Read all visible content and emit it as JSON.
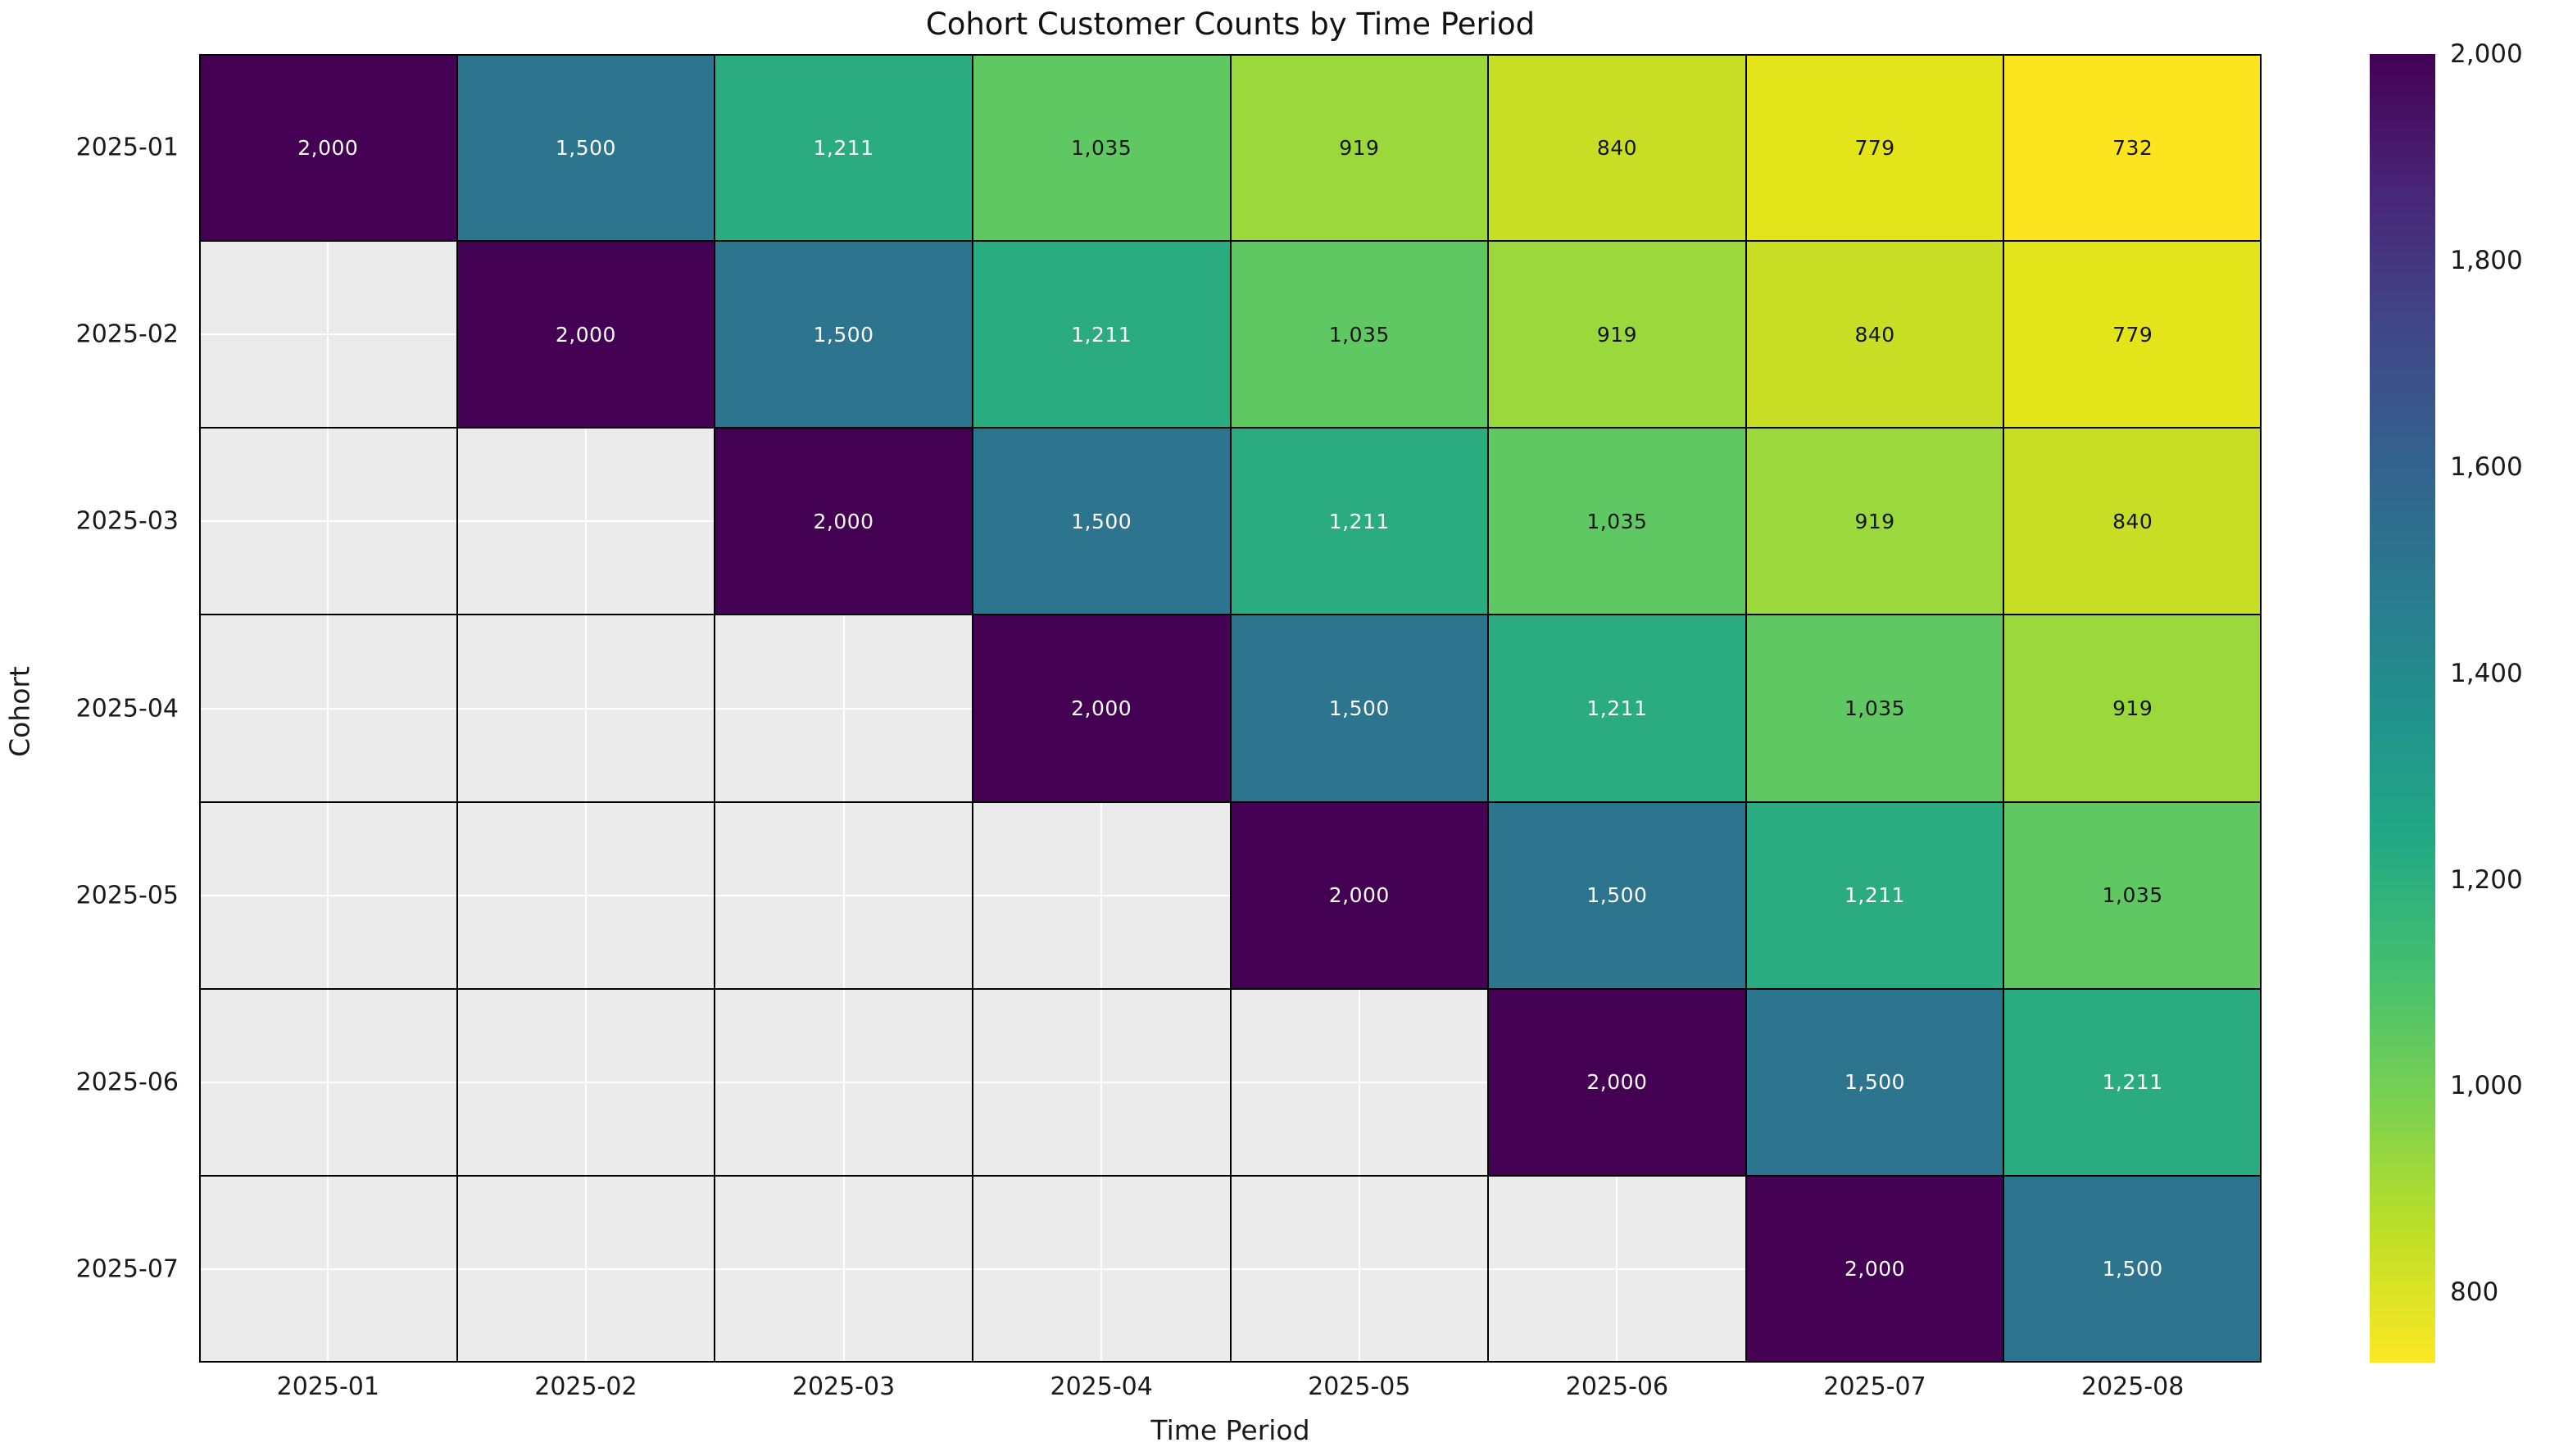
{
  "chart_data": {
    "type": "heatmap",
    "title": "Cohort Customer Counts by Time Period",
    "xlabel": "Time Period",
    "ylabel": "Cohort",
    "x_categories": [
      "2025-01",
      "2025-02",
      "2025-03",
      "2025-04",
      "2025-05",
      "2025-06",
      "2025-07",
      "2025-08"
    ],
    "y_categories": [
      "2025-01",
      "2025-02",
      "2025-03",
      "2025-04",
      "2025-05",
      "2025-06",
      "2025-07"
    ],
    "matrix": [
      [
        2000,
        1500,
        1211,
        1035,
        919,
        840,
        779,
        732
      ],
      [
        null,
        2000,
        1500,
        1211,
        1035,
        919,
        840,
        779
      ],
      [
        null,
        null,
        2000,
        1500,
        1211,
        1035,
        919,
        840
      ],
      [
        null,
        null,
        null,
        2000,
        1500,
        1211,
        1035,
        919
      ],
      [
        null,
        null,
        null,
        null,
        2000,
        1500,
        1211,
        1035
      ],
      [
        null,
        null,
        null,
        null,
        null,
        2000,
        1500,
        1211
      ],
      [
        null,
        null,
        null,
        null,
        null,
        null,
        2000,
        1500
      ]
    ],
    "cell_labels": {
      "2000": "2,000",
      "1500": "1,500",
      "1211": "1,211",
      "1035": "1,035",
      "919": "919",
      "840": "840",
      "779": "779",
      "732": "732"
    },
    "value_colors": {
      "2000": "#440154",
      "1500": "#2d748e",
      "1211": "#2aab80",
      "1035": "#5fc862",
      "919": "#9ad83c",
      "840": "#c8de24",
      "779": "#e3e41a",
      "732": "#fce51f"
    },
    "value_text_colors": {
      "2000": "#ffffff",
      "1500": "#ffffff",
      "1211": "#ffffff",
      "1035": "#141414",
      "919": "#141414",
      "840": "#141414",
      "779": "#141414",
      "732": "#141414"
    },
    "masked_color": "#ebebeb",
    "grid_major_color": "#000000",
    "grid_minor_color": "#ffffff",
    "colormap": "viridis (high values dark purple, low values yellow)",
    "vmin": 732,
    "vmax": 2000,
    "colorbar_ticks": [
      2000,
      1800,
      1600,
      1400,
      1200,
      1000,
      800
    ],
    "colorbar_tick_labels": [
      "2,000",
      "1,800",
      "1,600",
      "1,400",
      "1,200",
      "1,000",
      "800"
    ],
    "colorbar_gradient_top_to_bottom": [
      "#440154",
      "#482475",
      "#414487",
      "#355f8d",
      "#2a788e",
      "#21918c",
      "#22a884",
      "#44bf70",
      "#7ad151",
      "#bddf26",
      "#fde725"
    ],
    "grid_on": true,
    "legend_position": "right-colorbar"
  }
}
